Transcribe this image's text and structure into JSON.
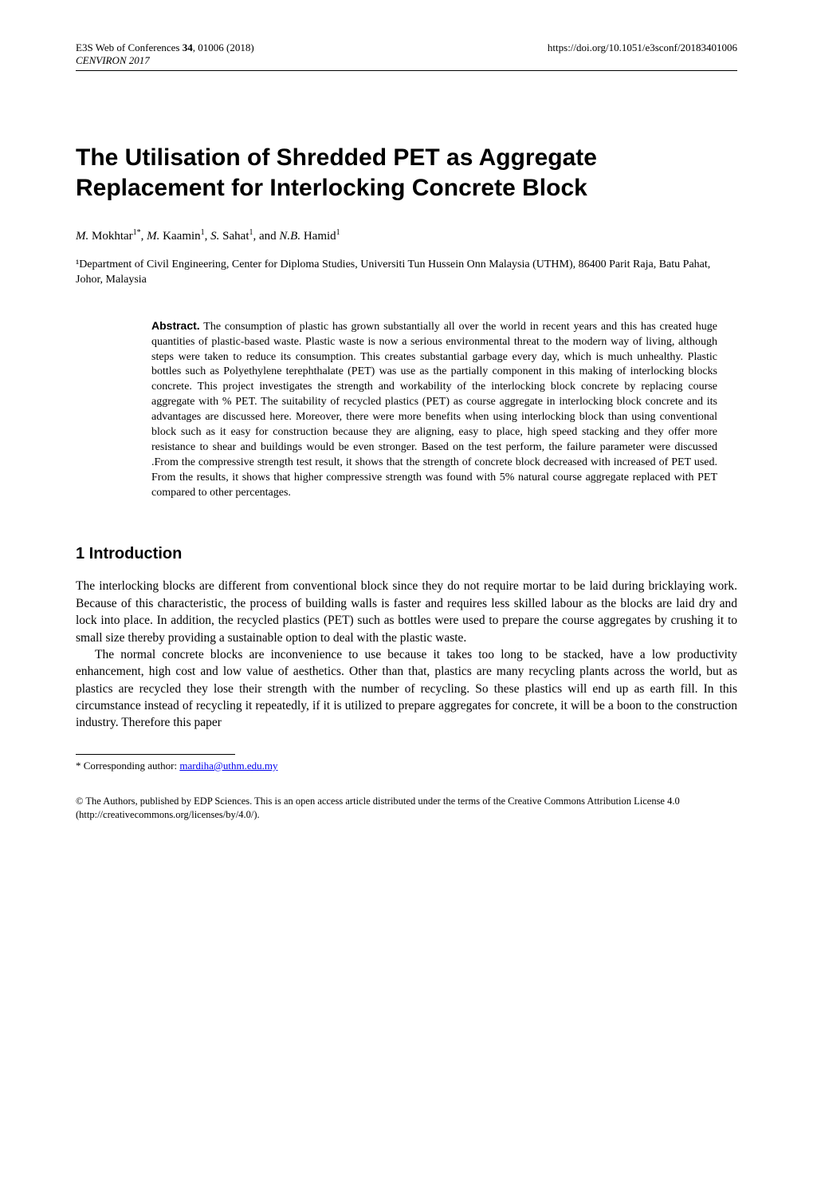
{
  "header": {
    "left_journal": "E3S Web of Conferences ",
    "left_volume_bold": "34",
    "left_rest": ", 01006 (2018)",
    "left_conf_italic": "CENVIRON 2017",
    "right_doi": "https://doi.org/10.1051/e3sconf/20183401006"
  },
  "title": "The Utilisation of Shredded PET as Aggregate Replacement for Interlocking Concrete Block",
  "authors_html": "<span class='initial'>M.</span> Mokhtar<sup>1*</sup>, <span class='initial'>M.</span> Kaamin<sup>1</sup>, <span class='initial'>S.</span> Sahat<sup>1</sup>, and <span class='initial'>N.B.</span> Hamid<sup>1</sup>",
  "affiliation": "¹Department of Civil Engineering, Center for Diploma Studies, Universiti Tun Hussein Onn Malaysia (UTHM), 86400 Parit Raja, Batu Pahat, Johor, Malaysia",
  "abstract": {
    "label": "Abstract.",
    "text": " The consumption of plastic has grown substantially all over the world in recent years and this has created huge quantities of plastic-based waste. Plastic waste is now a serious environmental threat to the modern way of living, although steps were taken to reduce its consumption. This creates substantial garbage every day, which is much unhealthy. Plastic bottles such as Polyethylene terephthalate (PET) was use as the partially component in this making of interlocking blocks concrete. This project investigates the strength and workability of the interlocking block concrete by replacing course aggregate with % PET. The suitability of recycled plastics (PET) as course aggregate in interlocking block concrete and its advantages are discussed here. Moreover, there were more benefits when using interlocking block than using conventional block such as it easy for construction because they are aligning, easy to place, high speed stacking and they offer more resistance to shear and buildings would be even stronger. Based on the test perform, the failure parameter were discussed .From the compressive strength test result, it shows that the strength of concrete block decreased with increased of PET used. From the results, it shows that higher compressive strength was found with 5% natural course aggregate replaced with PET compared to other percentages."
  },
  "section1": {
    "heading": "1 Introduction",
    "para1": "The interlocking blocks are different from conventional block since they do not require mortar to be laid during bricklaying work. Because of this characteristic, the process of building walls is faster and requires less skilled labour as the blocks are laid dry and lock into place.  In addition, the recycled plastics (PET) such as bottles were used to prepare the course aggregates by crushing it to small size thereby providing a sustainable option to deal with the plastic waste.",
    "para2": "The normal concrete blocks are inconvenience to use because it takes too long to be stacked, have a low productivity enhancement, high cost and low value of aesthetics. Other than that, plastics are many recycling plants across the world, but as plastics are recycled they lose their strength with the number of recycling. So these plastics will end up as earth fill. In this circumstance instead of recycling it repeatedly, if it is utilized to prepare aggregates for concrete, it will be a boon to the construction industry. Therefore this paper"
  },
  "footnote": {
    "label": "* Corresponding author: ",
    "email": "mardiha@uthm.edu.my"
  },
  "copyright": "© The Authors, published by EDP Sciences. This is an open access article distributed under the terms of the Creative Commons Attribution License 4.0 (http://creativecommons.org/licenses/by/4.0/)."
}
